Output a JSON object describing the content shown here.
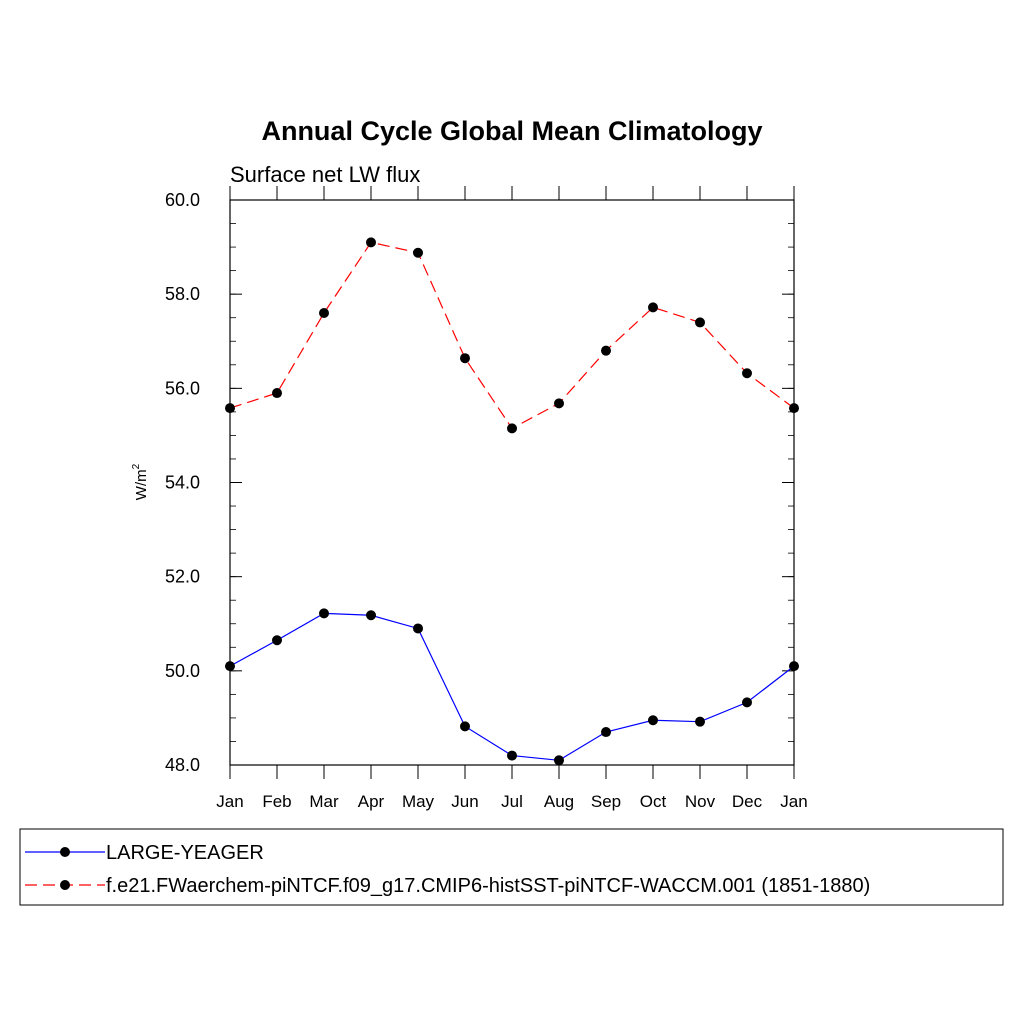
{
  "chart_data": {
    "type": "line",
    "title": "Annual Cycle Global Mean Climatology",
    "subtitle": "Surface net LW flux",
    "ylabel": "W/m",
    "ylabel_sup": "2",
    "ylim": [
      48.0,
      60.0
    ],
    "yticks": [
      "48.0",
      "50.0",
      "52.0",
      "54.0",
      "56.0",
      "58.0",
      "60.0"
    ],
    "categories": [
      "Jan",
      "Feb",
      "Mar",
      "Apr",
      "May",
      "Jun",
      "Jul",
      "Aug",
      "Sep",
      "Oct",
      "Nov",
      "Dec",
      "Jan"
    ],
    "grid": false,
    "legend_position": "bottom",
    "series": [
      {
        "name": "LARGE-YEAGER",
        "color": "#0000ff",
        "dash": "solid",
        "values": [
          50.1,
          50.65,
          51.22,
          51.18,
          50.9,
          48.82,
          48.2,
          48.1,
          48.7,
          48.95,
          48.92,
          49.33,
          50.1
        ]
      },
      {
        "name": "f.e21.FWaerchem-piNTCF.f09_g17.CMIP6-histSST-piNTCF-WACCM.001 (1851-1880)",
        "color": "#ff0000",
        "dash": "dashed",
        "values": [
          55.58,
          55.9,
          57.6,
          59.1,
          58.88,
          56.64,
          55.15,
          55.68,
          56.8,
          57.72,
          57.4,
          56.32,
          55.58
        ]
      }
    ]
  }
}
